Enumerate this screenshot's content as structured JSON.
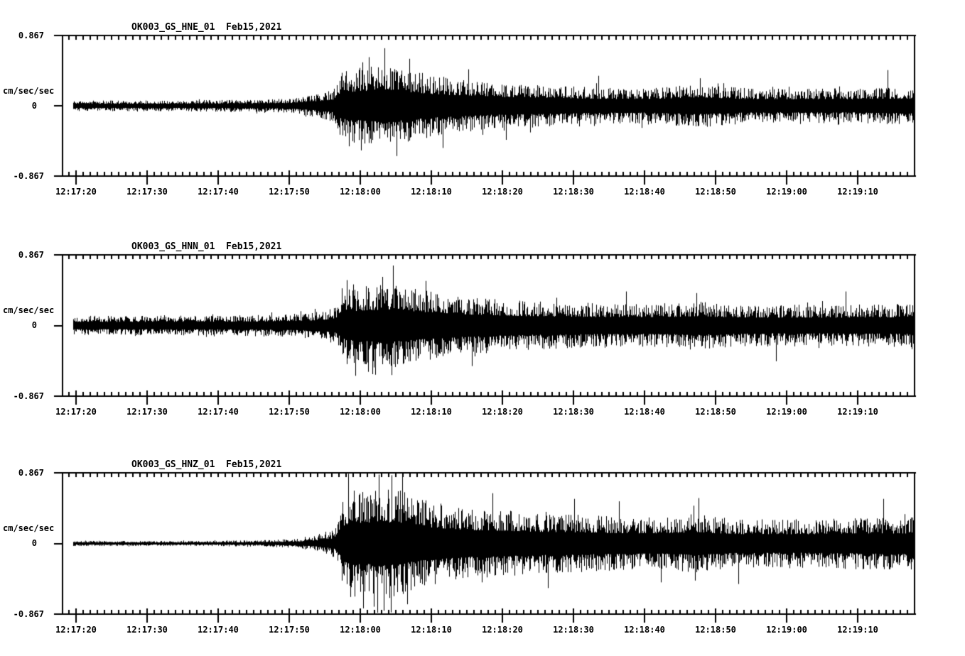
{
  "figure": {
    "background_color": "#ffffff",
    "trace_color": "#000000",
    "station": "OK003",
    "date": "Feb15,2021"
  },
  "chart_data": [
    {
      "type": "line",
      "id": "HNE",
      "title": "OK003_GS_HNE_01  Feb15,2021",
      "channel": "HNE",
      "date": "Feb15,2021",
      "ylabel": "cm/sec/sec",
      "ylim": [
        -0.867,
        0.867
      ],
      "ytick_labels": [
        "0.867",
        "0",
        "-0.867"
      ],
      "xtick_labels": [
        "12:17:20",
        "12:17:30",
        "12:17:40",
        "12:17:50",
        "12:18:00",
        "12:18:10",
        "12:18:20",
        "12:18:30",
        "12:18:40",
        "12:18:50",
        "12:19:00",
        "12:19:10"
      ],
      "xtick_seconds": [
        20,
        30,
        40,
        50,
        60,
        70,
        80,
        90,
        100,
        110,
        120,
        130
      ],
      "xlim_seconds_after_12_17_00": [
        18.1,
        138
      ],
      "trace_start_seconds": 19.6,
      "envelope_cm_s2": [
        [
          19.6,
          0.065
        ],
        [
          30,
          0.068
        ],
        [
          40,
          0.072
        ],
        [
          47,
          0.078
        ],
        [
          50,
          0.09
        ],
        [
          53,
          0.13
        ],
        [
          55,
          0.17
        ],
        [
          56.2,
          0.2
        ],
        [
          56.8,
          0.38
        ],
        [
          58,
          0.44
        ],
        [
          60,
          0.47
        ],
        [
          62,
          0.5
        ],
        [
          64,
          0.52
        ],
        [
          66,
          0.46
        ],
        [
          68,
          0.42
        ],
        [
          70,
          0.38
        ],
        [
          73,
          0.34
        ],
        [
          76,
          0.31
        ],
        [
          80,
          0.28
        ],
        [
          84,
          0.27
        ],
        [
          88,
          0.25
        ],
        [
          92,
          0.23
        ],
        [
          96,
          0.22
        ],
        [
          100,
          0.22
        ],
        [
          104,
          0.24
        ],
        [
          107,
          0.27
        ],
        [
          110,
          0.25
        ],
        [
          114,
          0.22
        ],
        [
          118,
          0.21
        ],
        [
          122,
          0.21
        ],
        [
          126,
          0.22
        ],
        [
          130,
          0.21
        ],
        [
          134,
          0.23
        ],
        [
          138,
          0.23
        ]
      ],
      "peak_spikes": [
        {
          "t": 63.4,
          "a": 0.71
        },
        {
          "t": 61.2,
          "a": 0.6
        },
        {
          "t": 65.1,
          "a": -0.62
        },
        {
          "t": 58.4,
          "a": -0.5
        },
        {
          "t": 60.1,
          "a": -0.55
        },
        {
          "t": 66.9,
          "a": 0.58
        },
        {
          "t": 71.6,
          "a": -0.52
        },
        {
          "t": 75.2,
          "a": 0.45
        },
        {
          "t": 93.5,
          "a": 0.37
        },
        {
          "t": 107.8,
          "a": 0.34
        },
        {
          "t": 134.2,
          "a": 0.44
        },
        {
          "t": 80.5,
          "a": -0.42
        }
      ]
    },
    {
      "type": "line",
      "id": "HNN",
      "title": "OK003_GS_HNN_01  Feb15,2021",
      "channel": "HNN",
      "date": "Feb15,2021",
      "ylabel": "cm/sec/sec",
      "ylim": [
        -0.867,
        0.867
      ],
      "ytick_labels": [
        "0.867",
        "0",
        "-0.867"
      ],
      "xtick_labels": [
        "12:17:20",
        "12:17:30",
        "12:17:40",
        "12:17:50",
        "12:18:00",
        "12:18:10",
        "12:18:20",
        "12:18:30",
        "12:18:40",
        "12:18:50",
        "12:19:00",
        "12:19:10"
      ],
      "xtick_seconds": [
        20,
        30,
        40,
        50,
        60,
        70,
        80,
        90,
        100,
        110,
        120,
        130
      ],
      "xlim_seconds_after_12_17_00": [
        18.1,
        138
      ],
      "trace_start_seconds": 19.6,
      "envelope_cm_s2": [
        [
          19.6,
          0.12
        ],
        [
          30,
          0.12
        ],
        [
          40,
          0.125
        ],
        [
          45,
          0.13
        ],
        [
          50,
          0.14
        ],
        [
          53,
          0.16
        ],
        [
          55,
          0.19
        ],
        [
          56.6,
          0.23
        ],
        [
          57.3,
          0.4
        ],
        [
          58.5,
          0.46
        ],
        [
          60,
          0.48
        ],
        [
          62,
          0.5
        ],
        [
          64,
          0.52
        ],
        [
          66,
          0.49
        ],
        [
          68,
          0.45
        ],
        [
          70,
          0.42
        ],
        [
          73,
          0.38
        ],
        [
          76,
          0.35
        ],
        [
          80,
          0.32
        ],
        [
          84,
          0.3
        ],
        [
          88,
          0.29
        ],
        [
          92,
          0.28
        ],
        [
          96,
          0.27
        ],
        [
          100,
          0.27
        ],
        [
          104,
          0.28
        ],
        [
          107,
          0.3
        ],
        [
          110,
          0.28
        ],
        [
          114,
          0.26
        ],
        [
          118,
          0.25
        ],
        [
          122,
          0.26
        ],
        [
          126,
          0.25
        ],
        [
          130,
          0.26
        ],
        [
          134,
          0.26
        ],
        [
          138,
          0.27
        ]
      ],
      "peak_spikes": [
        {
          "t": 64.6,
          "a": 0.74
        },
        {
          "t": 58.1,
          "a": 0.56
        },
        {
          "t": 59.3,
          "a": -0.62
        },
        {
          "t": 61.7,
          "a": -0.6
        },
        {
          "t": 63.1,
          "a": 0.6
        },
        {
          "t": 69.2,
          "a": 0.55
        },
        {
          "t": 75.7,
          "a": -0.5
        },
        {
          "t": 97.4,
          "a": 0.42
        },
        {
          "t": 107.3,
          "a": 0.4
        },
        {
          "t": 118.5,
          "a": -0.44
        },
        {
          "t": 128.3,
          "a": 0.42
        }
      ]
    },
    {
      "type": "line",
      "id": "HNZ",
      "title": "OK003_GS_HNZ_01  Feb15,2021",
      "channel": "HNZ",
      "date": "Feb15,2021",
      "ylabel": "cm/sec/sec",
      "ylim": [
        -0.867,
        0.867
      ],
      "ytick_labels": [
        "0.867",
        "0",
        "-0.867"
      ],
      "xtick_labels": [
        "12:17:20",
        "12:17:30",
        "12:17:40",
        "12:17:50",
        "12:18:00",
        "12:18:10",
        "12:18:20",
        "12:18:30",
        "12:18:40",
        "12:18:50",
        "12:19:00",
        "12:19:10"
      ],
      "xtick_seconds": [
        20,
        30,
        40,
        50,
        60,
        70,
        80,
        90,
        100,
        110,
        120,
        130
      ],
      "xlim_seconds_after_12_17_00": [
        18.1,
        138
      ],
      "trace_start_seconds": 19.6,
      "envelope_cm_s2": [
        [
          19.6,
          0.032
        ],
        [
          30,
          0.03
        ],
        [
          40,
          0.033
        ],
        [
          45,
          0.038
        ],
        [
          48,
          0.045
        ],
        [
          51,
          0.06
        ],
        [
          53,
          0.08
        ],
        [
          55,
          0.12
        ],
        [
          56.6,
          0.18
        ],
        [
          57.4,
          0.5
        ],
        [
          58.2,
          0.64
        ],
        [
          59,
          0.68
        ],
        [
          60,
          0.66
        ],
        [
          61,
          0.64
        ],
        [
          62,
          0.7
        ],
        [
          63,
          0.72
        ],
        [
          64,
          0.68
        ],
        [
          65,
          0.7
        ],
        [
          66,
          0.66
        ],
        [
          67,
          0.6
        ],
        [
          68,
          0.56
        ],
        [
          70,
          0.52
        ],
        [
          72,
          0.48
        ],
        [
          74,
          0.45
        ],
        [
          76,
          0.43
        ],
        [
          78,
          0.42
        ],
        [
          80,
          0.41
        ],
        [
          83,
          0.39
        ],
        [
          86,
          0.37
        ],
        [
          90,
          0.36
        ],
        [
          94,
          0.34
        ],
        [
          98,
          0.33
        ],
        [
          102,
          0.32
        ],
        [
          105,
          0.34
        ],
        [
          107,
          0.38
        ],
        [
          109,
          0.34
        ],
        [
          112,
          0.31
        ],
        [
          115,
          0.3
        ],
        [
          118,
          0.3
        ],
        [
          121,
          0.3
        ],
        [
          124,
          0.3
        ],
        [
          127,
          0.31
        ],
        [
          130,
          0.32
        ],
        [
          133,
          0.33
        ],
        [
          136,
          0.32
        ],
        [
          138,
          0.33
        ]
      ],
      "peak_spikes": [
        {
          "t": 58.3,
          "a": 0.86
        },
        {
          "t": 60.4,
          "a": -0.8
        },
        {
          "t": 62.6,
          "a": 0.85
        },
        {
          "t": 63.3,
          "a": -0.83
        },
        {
          "t": 65.9,
          "a": 0.86
        },
        {
          "t": 61.9,
          "a": -0.78
        },
        {
          "t": 66.6,
          "a": -0.75
        },
        {
          "t": 64.3,
          "a": -0.85
        },
        {
          "t": 78.6,
          "a": 0.62
        },
        {
          "t": 90.1,
          "a": 0.55
        },
        {
          "t": 96.4,
          "a": 0.52
        },
        {
          "t": 107.6,
          "a": 0.56
        },
        {
          "t": 113.2,
          "a": -0.5
        },
        {
          "t": 133.6,
          "a": 0.55
        },
        {
          "t": 86.4,
          "a": -0.55
        },
        {
          "t": 102.3,
          "a": -0.48
        }
      ]
    }
  ]
}
